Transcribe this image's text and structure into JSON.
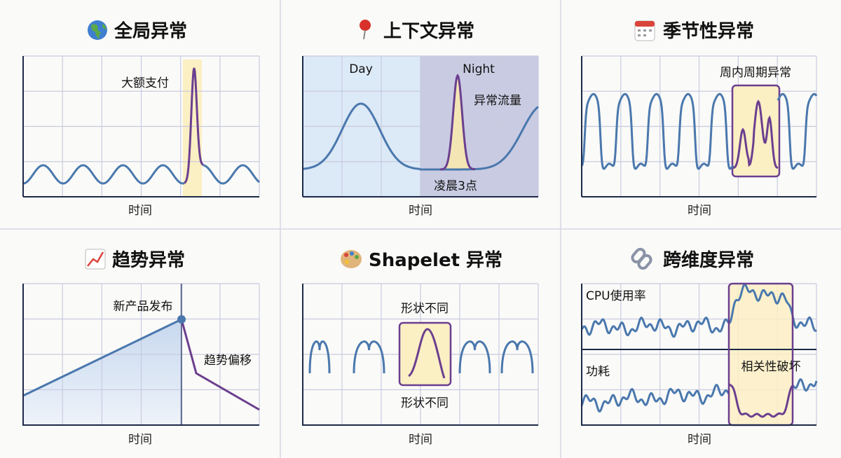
{
  "panels": [
    {
      "icon": "globe-icon",
      "title": "全局异常",
      "xlabel": "时间",
      "annotations": [
        "大额支付"
      ]
    },
    {
      "icon": "pin-icon",
      "title": "上下文异常",
      "xlabel": "时间",
      "annotations": [
        "Day",
        "Night",
        "异常流量",
        "凌晨3点"
      ]
    },
    {
      "icon": "calendar-icon",
      "title": "季节性异常",
      "xlabel": "时间",
      "annotations": [
        "周内周期异常"
      ]
    },
    {
      "icon": "chart-up-icon",
      "title": "趋势异常",
      "xlabel": "时间",
      "annotations": [
        "新产品发布",
        "趋势偏移"
      ]
    },
    {
      "icon": "palette-icon",
      "title": "Shapelet 异常",
      "xlabel": "时间",
      "annotations": [
        "形状不同",
        "形状不同"
      ]
    },
    {
      "icon": "link-icon",
      "title": "跨维度异常",
      "xlabel": "时间",
      "annotations": [
        "CPU使用率",
        "功耗",
        "相关性破坏"
      ]
    }
  ],
  "colors": {
    "normal": "#4a78ad",
    "anomaly": "#6b3f8f",
    "highlight": "#fbefc4",
    "day": "#dce9f6",
    "night": "#c9cbe2"
  }
}
